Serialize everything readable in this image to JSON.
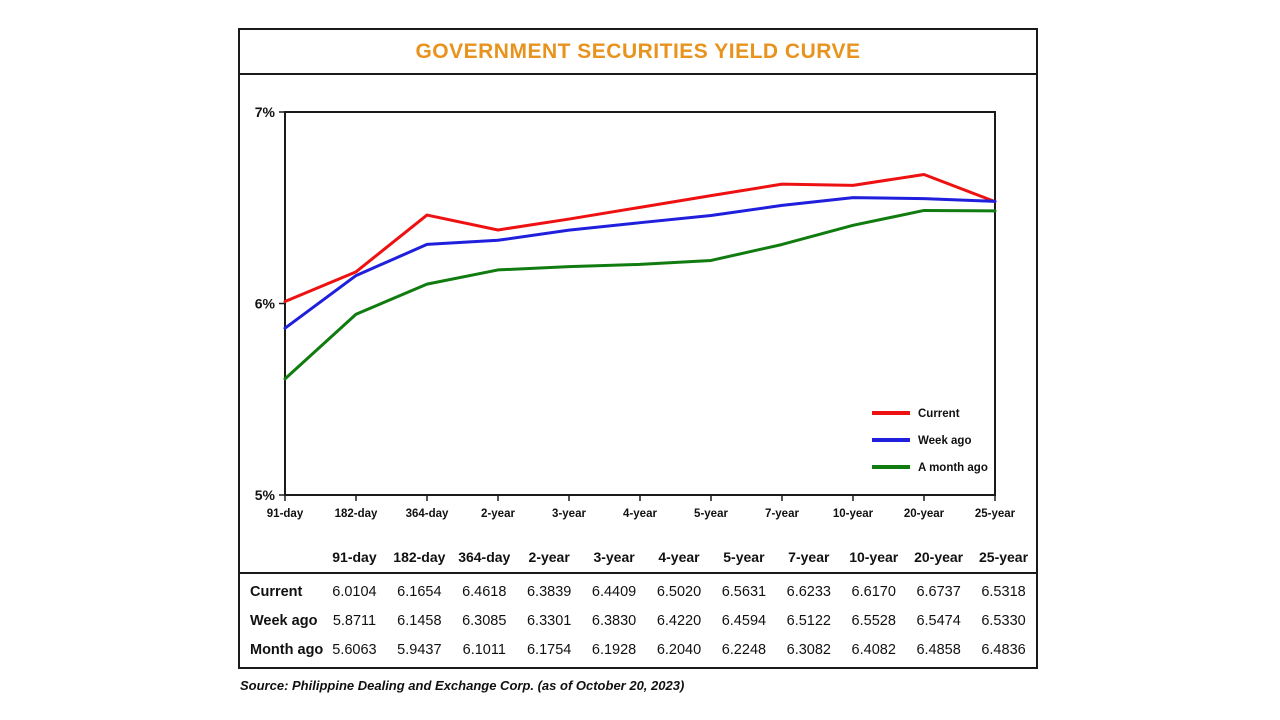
{
  "title": "GOVERNMENT SECURITIES YIELD CURVE",
  "source": "Source: Philippine Dealing and Exchange Corp. (as of October 20, 2023)",
  "colors": {
    "title": "#e8931d",
    "border": "#1a1a1a",
    "current": "#ee1111",
    "week_ago": "#1f1fdd",
    "month_ago": "#107c10"
  },
  "chart_data": {
    "type": "line",
    "title": "GOVERNMENT SECURITIES YIELD CURVE",
    "categories": [
      "91-day",
      "182-day",
      "364-day",
      "2-year",
      "3-year",
      "4-year",
      "5-year",
      "7-year",
      "10-year",
      "20-year",
      "25-year"
    ],
    "series": [
      {
        "name": "Current",
        "color": "#ee1111",
        "values": [
          6.0104,
          6.1654,
          6.4618,
          6.3839,
          6.4409,
          6.502,
          6.5631,
          6.6233,
          6.617,
          6.6737,
          6.5318
        ]
      },
      {
        "name": "Week ago",
        "color": "#1f1fdd",
        "values": [
          5.8711,
          6.1458,
          6.3085,
          6.3301,
          6.383,
          6.422,
          6.4594,
          6.5122,
          6.5528,
          6.5474,
          6.533
        ]
      },
      {
        "name": "A month ago",
        "color": "#107c10",
        "values": [
          5.6063,
          5.9437,
          6.1011,
          6.1754,
          6.1928,
          6.204,
          6.2248,
          6.3082,
          6.4082,
          6.4858,
          6.4836
        ]
      }
    ],
    "ylim": [
      5,
      7
    ],
    "yticks": [
      {
        "value": 7,
        "label": "7%"
      },
      {
        "value": 6,
        "label": "6%"
      },
      {
        "value": 5,
        "label": "5%"
      }
    ],
    "xlabel": "",
    "ylabel": "",
    "grid": false,
    "legend_position": "inside-right"
  },
  "table": {
    "header": [
      "",
      "91-day",
      "182-day",
      "364-day",
      "2-year",
      "3-year",
      "4-year",
      "5-year",
      "7-year",
      "10-year",
      "20-year",
      "25-year"
    ],
    "rows": [
      {
        "label": "Current",
        "values": [
          "6.0104",
          "6.1654",
          "6.4618",
          "6.3839",
          "6.4409",
          "6.5020",
          "6.5631",
          "6.6233",
          "6.6170",
          "6.6737",
          "6.5318"
        ]
      },
      {
        "label": "Week ago",
        "values": [
          "5.8711",
          "6.1458",
          "6.3085",
          "6.3301",
          "6.3830",
          "6.4220",
          "6.4594",
          "6.5122",
          "6.5528",
          "6.5474",
          "6.5330"
        ]
      },
      {
        "label": "Month ago",
        "values": [
          "5.6063",
          "5.9437",
          "6.1011",
          "6.1754",
          "6.1928",
          "6.2040",
          "6.2248",
          "6.3082",
          "6.4082",
          "6.4858",
          "6.4836"
        ]
      }
    ]
  }
}
